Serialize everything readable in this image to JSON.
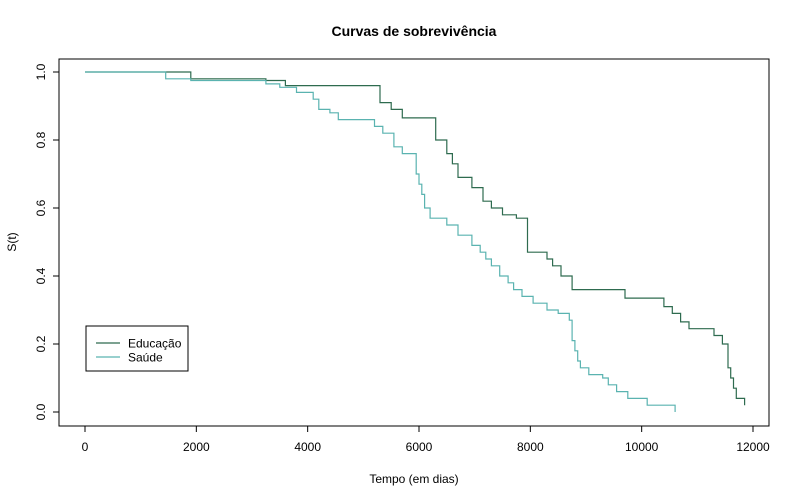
{
  "chart_data": {
    "type": "line",
    "step": true,
    "title": "Curvas de sobrevivência",
    "xlabel": "Tempo (em dias)",
    "ylabel": "S(t)",
    "xlim": [
      0,
      12000
    ],
    "ylim": [
      0,
      1
    ],
    "x_ticks": [
      0,
      2000,
      4000,
      6000,
      8000,
      10000,
      12000
    ],
    "x_tick_labels": [
      "0",
      "2000",
      "4000",
      "6000",
      "8000",
      "10000",
      "12000"
    ],
    "y_ticks": [
      0,
      0.2,
      0.4,
      0.6,
      0.8,
      1.0
    ],
    "y_tick_labels": [
      "0.0",
      "0.2",
      "0.4",
      "0.6",
      "0.8",
      "1.0"
    ],
    "grid": false,
    "legend_position": "bottom-left",
    "series": [
      {
        "name": "Educação",
        "color": "#2e6b4f",
        "x": [
          0,
          1900,
          3250,
          3600,
          5300,
          5500,
          5700,
          6300,
          6500,
          6600,
          6700,
          6950,
          7150,
          7300,
          7500,
          7750,
          7950,
          8300,
          8400,
          8550,
          8750,
          9700,
          10400,
          10550,
          10700,
          10850,
          11300,
          11450,
          11550,
          11600,
          11650,
          11700,
          11850
        ],
        "y": [
          1.0,
          0.98,
          0.975,
          0.96,
          0.91,
          0.89,
          0.865,
          0.8,
          0.76,
          0.73,
          0.69,
          0.66,
          0.62,
          0.6,
          0.58,
          0.57,
          0.47,
          0.45,
          0.43,
          0.4,
          0.36,
          0.335,
          0.31,
          0.29,
          0.265,
          0.245,
          0.225,
          0.2,
          0.13,
          0.1,
          0.07,
          0.04,
          0.02
        ]
      },
      {
        "name": "Saúde",
        "color": "#5ab3b0",
        "x": [
          0,
          1450,
          1900,
          3250,
          3500,
          3800,
          4100,
          4200,
          4400,
          4550,
          5200,
          5350,
          5550,
          5700,
          5950,
          6000,
          6050,
          6100,
          6200,
          6500,
          6700,
          6950,
          7100,
          7200,
          7300,
          7450,
          7600,
          7700,
          7850,
          8050,
          8300,
          8500,
          8700,
          8750,
          8800,
          8850,
          8900,
          9050,
          9300,
          9400,
          9550,
          9750,
          10100,
          10600
        ],
        "y": [
          1.0,
          0.98,
          0.975,
          0.965,
          0.955,
          0.94,
          0.92,
          0.89,
          0.88,
          0.86,
          0.84,
          0.82,
          0.78,
          0.76,
          0.7,
          0.67,
          0.64,
          0.6,
          0.57,
          0.55,
          0.52,
          0.49,
          0.47,
          0.45,
          0.43,
          0.4,
          0.38,
          0.36,
          0.34,
          0.32,
          0.3,
          0.29,
          0.27,
          0.21,
          0.18,
          0.15,
          0.13,
          0.11,
          0.1,
          0.08,
          0.06,
          0.04,
          0.02,
          0.0
        ]
      }
    ]
  }
}
